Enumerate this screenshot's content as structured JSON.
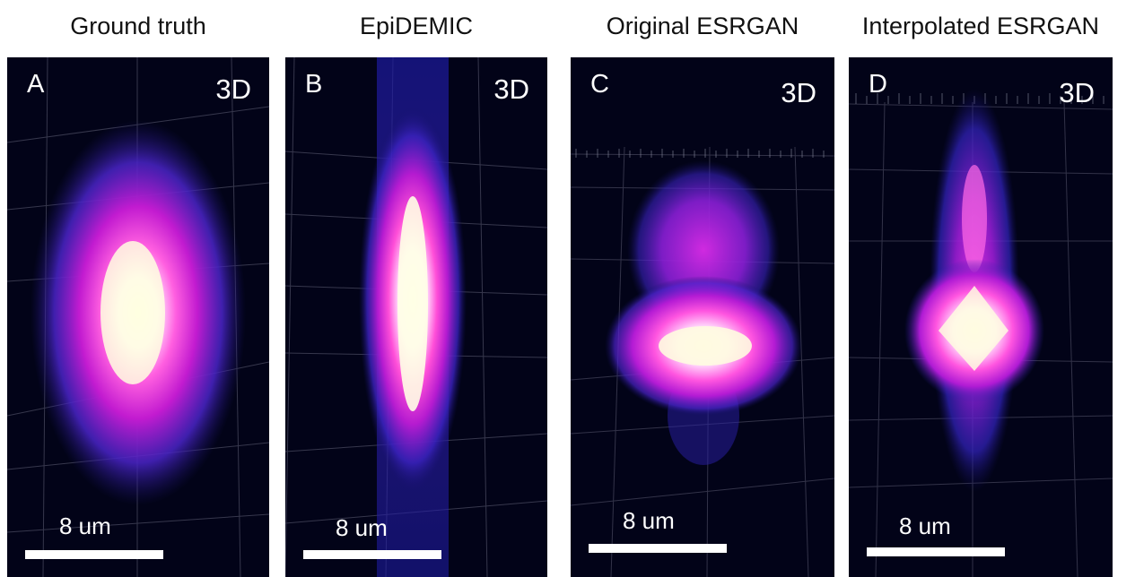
{
  "panels": [
    {
      "title": "Ground truth",
      "letter": "A",
      "view": "3D",
      "scale_label": "8 um"
    },
    {
      "title": "EpiDEMIC",
      "letter": "B",
      "view": "3D",
      "scale_label": "8 um"
    },
    {
      "title": "Original ESRGAN",
      "letter": "C",
      "view": "3D",
      "scale_label": "8 um"
    },
    {
      "title": "Interpolated ESRGAN",
      "letter": "D",
      "view": "3D",
      "scale_label": "8 um"
    }
  ],
  "colors": {
    "background": "#020318",
    "glow_outer": "#2a1fb0",
    "glow_mid": "#a419d8",
    "glow_inner": "#ff3ad0",
    "glow_core": "#fffde0"
  }
}
